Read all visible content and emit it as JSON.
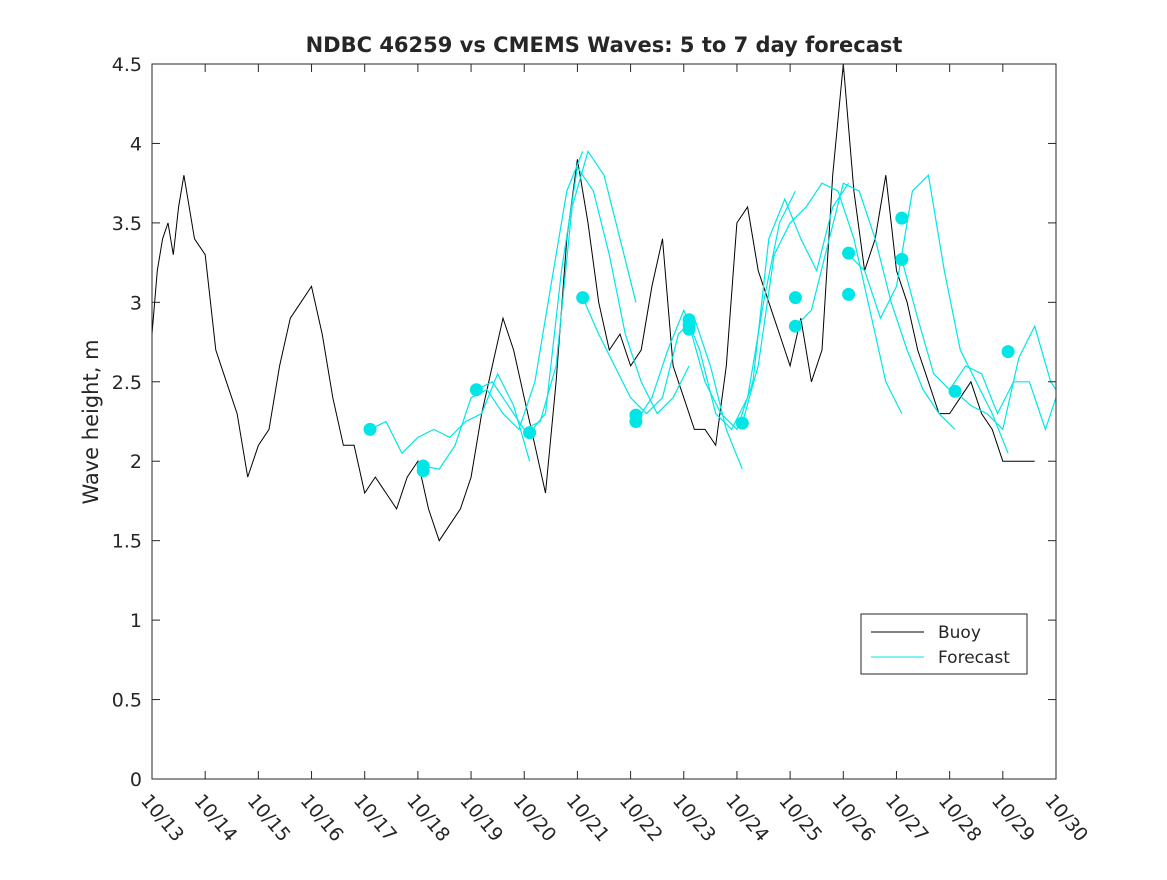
{
  "chart_data": {
    "type": "line",
    "title": "NDBC 46259 vs CMEMS Waves: 5 to 7 day forecast",
    "xlabel": "",
    "ylabel": "Wave height, m",
    "xlim": [
      0,
      17
    ],
    "ylim": [
      0,
      4.5
    ],
    "yticks": [
      0,
      0.5,
      1,
      1.5,
      2,
      2.5,
      3,
      3.5,
      4,
      4.5
    ],
    "ytick_labels": [
      "0",
      "0.5",
      "1",
      "1.5",
      "2",
      "2.5",
      "3",
      "3.5",
      "4",
      "4.5"
    ],
    "xtick_labels": [
      "10/13",
      "10/14",
      "10/15",
      "10/16",
      "10/17",
      "10/18",
      "10/19",
      "10/20",
      "10/21",
      "10/22",
      "10/23",
      "10/24",
      "10/25",
      "10/26",
      "10/27",
      "10/28",
      "10/29",
      "10/30"
    ],
    "x_unit": "days since 10/13 00:00",
    "legend": {
      "position": "lower-right",
      "entries": [
        "Buoy",
        "Forecast"
      ]
    },
    "colors": {
      "buoy": "#000000",
      "forecast": "#00e6e6",
      "axes": "#262626"
    },
    "series": [
      {
        "name": "Buoy",
        "x": [
          0,
          0.1,
          0.2,
          0.3,
          0.4,
          0.5,
          0.6,
          0.8,
          1.0,
          1.2,
          1.4,
          1.6,
          1.8,
          2.0,
          2.2,
          2.4,
          2.6,
          2.8,
          3.0,
          3.2,
          3.4,
          3.6,
          3.8,
          4.0,
          4.2,
          4.4,
          4.6,
          4.8,
          5.0,
          5.2,
          5.4,
          5.6,
          5.8,
          6.0,
          6.2,
          6.4,
          6.6,
          6.8,
          7.0,
          7.2,
          7.4,
          7.6,
          7.8,
          8.0,
          8.2,
          8.4,
          8.6,
          8.8,
          9.0,
          9.2,
          9.4,
          9.6,
          9.8,
          10.0,
          10.2,
          10.4,
          10.6,
          10.8,
          11.0,
          11.2,
          11.4,
          11.6,
          11.8,
          12.0,
          12.2,
          12.4,
          12.6,
          12.8,
          13.0,
          13.2,
          13.4,
          13.6,
          13.7,
          13.8,
          13.9,
          14.0,
          14.2,
          14.4,
          14.6,
          14.8,
          15.0,
          15.2,
          15.4,
          15.6,
          15.8,
          16.0,
          16.2,
          16.4,
          16.5,
          16.6
        ],
        "values": [
          2.8,
          3.2,
          3.4,
          3.5,
          3.3,
          3.6,
          3.8,
          3.4,
          3.3,
          2.7,
          2.5,
          2.3,
          1.9,
          2.1,
          2.2,
          2.6,
          2.9,
          3.0,
          3.1,
          2.8,
          2.4,
          2.1,
          2.1,
          1.8,
          1.9,
          1.8,
          1.7,
          1.9,
          2.0,
          1.7,
          1.5,
          1.6,
          1.7,
          1.9,
          2.3,
          2.6,
          2.9,
          2.7,
          2.4,
          2.1,
          1.8,
          2.5,
          3.4,
          3.9,
          3.5,
          3.0,
          2.7,
          2.8,
          2.6,
          2.7,
          3.1,
          3.4,
          2.6,
          2.4,
          2.2,
          2.2,
          2.1,
          2.6,
          3.5,
          3.6,
          3.2,
          3.0,
          2.8,
          2.6,
          2.9,
          2.5,
          2.7,
          3.8,
          4.5,
          3.7,
          3.2,
          3.4,
          3.6,
          3.8,
          3.5,
          3.2,
          3.0,
          2.7,
          2.5,
          2.3,
          2.3,
          2.4,
          2.5,
          2.3,
          2.2,
          2.0,
          2.0,
          2.0,
          2.0,
          2.0
        ]
      },
      {
        "name": "Forecast",
        "runs": [
          {
            "x": [
              4.1,
              4.4,
              4.7,
              5.0,
              5.3,
              5.6,
              5.9,
              6.2,
              6.5,
              6.8,
              7.1
            ],
            "values": [
              2.2,
              2.25,
              2.05,
              2.15,
              2.2,
              2.15,
              2.25,
              2.3,
              2.55,
              2.35,
              2.0
            ]
          },
          {
            "x": [
              5.1,
              5.4,
              5.7,
              6.0,
              6.3,
              6.6,
              6.9,
              7.2,
              7.5,
              7.8,
              8.1
            ],
            "values": [
              1.97,
              1.95,
              2.1,
              2.4,
              2.45,
              2.3,
              2.2,
              2.5,
              3.1,
              3.7,
              3.95
            ]
          },
          {
            "x": [
              6.1,
              6.4,
              6.7,
              7.0,
              7.3,
              7.6,
              7.9,
              8.2,
              8.5,
              8.8,
              9.1
            ],
            "values": [
              2.45,
              2.5,
              2.35,
              2.2,
              2.25,
              2.6,
              3.6,
              3.95,
              3.8,
              3.4,
              3.0
            ]
          },
          {
            "x": [
              7.1,
              7.4,
              7.7,
              8.0,
              8.3,
              8.6,
              8.9,
              9.2,
              9.5,
              9.8,
              10.1
            ],
            "values": [
              2.18,
              2.3,
              3.2,
              3.85,
              3.7,
              3.3,
              2.8,
              2.5,
              2.3,
              2.4,
              2.6
            ]
          },
          {
            "x": [
              8.1,
              8.4,
              8.7,
              9.0,
              9.3,
              9.6,
              9.9,
              10.2,
              10.5,
              10.8,
              11.1
            ],
            "values": [
              3.03,
              2.8,
              2.6,
              2.4,
              2.3,
              2.4,
              2.8,
              2.9,
              2.6,
              2.2,
              1.95
            ]
          },
          {
            "x": [
              9.1,
              9.4,
              9.7,
              10.0,
              10.3,
              10.6,
              10.9,
              11.2,
              11.5,
              11.8,
              12.1
            ],
            "values": [
              2.25,
              2.4,
              2.7,
              2.95,
              2.7,
              2.3,
              2.2,
              2.4,
              3.0,
              3.5,
              3.7
            ]
          },
          {
            "x": [
              10.1,
              10.4,
              10.7,
              11.0,
              11.3,
              11.6,
              11.9,
              12.2,
              12.5,
              12.8,
              13.1
            ],
            "values": [
              2.86,
              2.5,
              2.3,
              2.2,
              2.5,
              3.4,
              3.65,
              3.4,
              3.2,
              3.6,
              3.75
            ]
          },
          {
            "x": [
              11.1,
              11.4,
              11.7,
              12.0,
              12.3,
              12.6,
              12.9,
              13.2,
              13.5,
              13.8,
              14.1
            ],
            "values": [
              2.24,
              2.6,
              3.3,
              3.5,
              3.6,
              3.75,
              3.7,
              3.4,
              2.95,
              2.5,
              2.3
            ]
          },
          {
            "x": [
              12.1,
              12.4,
              12.7,
              13.0,
              13.3,
              13.6,
              13.9,
              14.2,
              14.5,
              14.8,
              15.1
            ],
            "values": [
              2.85,
              2.95,
              3.35,
              3.75,
              3.7,
              3.4,
              3.0,
              2.7,
              2.45,
              2.3,
              2.2
            ]
          },
          {
            "x": [
              13.1,
              13.4,
              13.7,
              14.0,
              14.3,
              14.6,
              14.9,
              15.2,
              15.5,
              15.8,
              16.1
            ],
            "values": [
              3.3,
              3.2,
              2.9,
              3.1,
              3.7,
              3.8,
              3.2,
              2.7,
              2.5,
              2.3,
              2.05
            ]
          },
          {
            "x": [
              14.1,
              14.4,
              14.7,
              15.0,
              15.3,
              15.6,
              15.9,
              16.2,
              16.5,
              16.8,
              17.0
            ],
            "values": [
              3.27,
              2.9,
              2.55,
              2.45,
              2.6,
              2.55,
              2.3,
              2.5,
              2.5,
              2.2,
              2.4
            ]
          },
          {
            "x": [
              15.1,
              15.4,
              15.7,
              16.0,
              16.3,
              16.6,
              16.9,
              17.0
            ],
            "values": [
              2.44,
              2.35,
              2.3,
              2.2,
              2.65,
              2.85,
              2.5,
              2.45
            ]
          }
        ],
        "start_markers": {
          "x": [
            4.1,
            5.1,
            5.1,
            6.1,
            7.1,
            8.1,
            9.1,
            9.1,
            10.1,
            10.1,
            10.1,
            11.1,
            12.1,
            12.1,
            13.1,
            13.1,
            14.1,
            14.1,
            15.1,
            16.1
          ],
          "values": [
            2.2,
            1.97,
            1.94,
            2.45,
            2.18,
            3.03,
            2.29,
            2.25,
            2.89,
            2.86,
            2.83,
            2.24,
            3.03,
            2.85,
            3.31,
            3.05,
            3.53,
            3.27,
            2.44,
            2.69
          ]
        }
      }
    ]
  }
}
